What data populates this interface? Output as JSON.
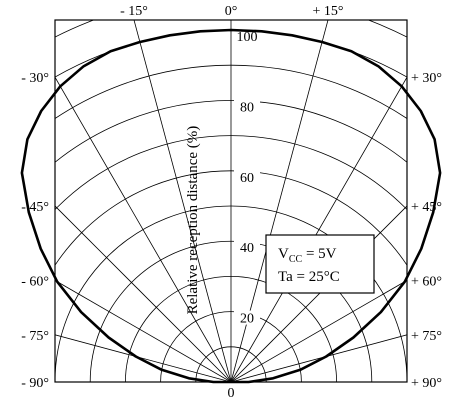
{
  "chart_data": {
    "type": "polar-line",
    "title": "",
    "ylabel": "Relative reception distance (%)",
    "radial_range": [
      0,
      100
    ],
    "radial_ticks": [
      "20",
      "40",
      "60",
      "80",
      "100"
    ],
    "origin_label": "0",
    "angle_range_deg": [
      -90,
      90
    ],
    "angle_ticks": [
      {
        "deg": -90,
        "label": "- 90°"
      },
      {
        "deg": -75,
        "label": "- 75°"
      },
      {
        "deg": -60,
        "label": "- 60°"
      },
      {
        "deg": -45,
        "label": "- 45°"
      },
      {
        "deg": -30,
        "label": "- 30°"
      },
      {
        "deg": -15,
        "label": "- 15°"
      },
      {
        "deg": 0,
        "label": "0°"
      },
      {
        "deg": 15,
        "label": "+ 15°"
      },
      {
        "deg": 30,
        "label": "+ 30°"
      },
      {
        "deg": 45,
        "label": "+ 45°"
      },
      {
        "deg": 60,
        "label": "+ 60°"
      },
      {
        "deg": 75,
        "label": "+ 75°"
      },
      {
        "deg": 90,
        "label": "+ 90°"
      }
    ],
    "grid": true,
    "series": [
      {
        "angles_deg": [
          -90,
          -85,
          -80,
          -75,
          -70,
          -65,
          -60,
          -55,
          -50,
          -45,
          -40,
          -35,
          -30,
          -25,
          -20,
          -15,
          -10,
          -5,
          0,
          5,
          10,
          15,
          20,
          25,
          30,
          35,
          40,
          45,
          50,
          55,
          60,
          65,
          70,
          75,
          80,
          85,
          90
        ],
        "values": [
          5,
          12,
          20,
          28,
          37,
          47,
          57,
          66,
          75,
          84,
          90,
          94,
          97,
          99,
          100,
          100,
          100,
          100,
          100,
          100,
          100,
          100,
          100,
          99,
          97,
          94,
          90,
          84,
          75,
          66,
          57,
          47,
          37,
          28,
          20,
          12,
          5
        ]
      }
    ],
    "annotation": {
      "line1_main": "V",
      "line1_sub": "CC",
      "line1_rest": " = 5V",
      "line2": "Ta = 25°C"
    }
  }
}
